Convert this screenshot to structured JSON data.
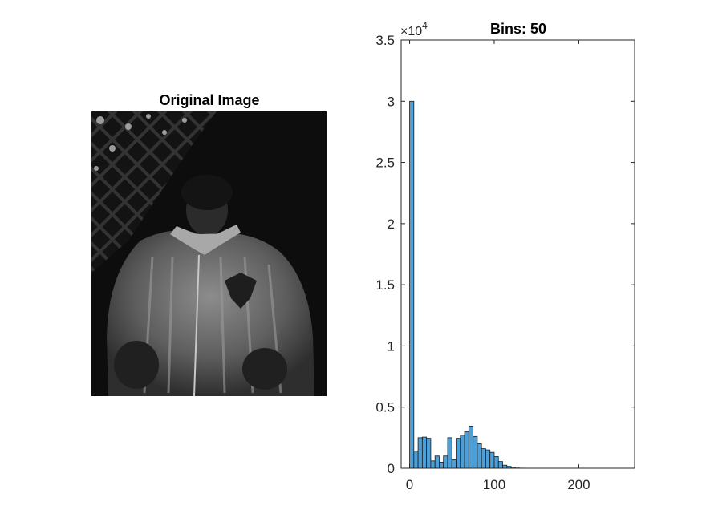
{
  "left_panel": {
    "title": "Original Image"
  },
  "chart_data": {
    "type": "bar",
    "title": "Bins: 50",
    "xlabel": "",
    "ylabel": "",
    "xlim": [
      -10,
      266
    ],
    "ylim": [
      0,
      35000
    ],
    "x_ticks": [
      0,
      100,
      200
    ],
    "x_tick_labels": [
      "0",
      "100",
      "200"
    ],
    "y_ticks": [
      0,
      5000,
      10000,
      15000,
      20000,
      25000,
      30000,
      35000
    ],
    "y_tick_labels": [
      "0",
      "0.5",
      "1",
      "1.5",
      "2",
      "2.5",
      "3",
      "3.5"
    ],
    "y_exponent_label": "×10",
    "y_exponent_power": "4",
    "bin_width": 5,
    "bin_edges_start": 0,
    "values": [
      30000,
      1400,
      2500,
      2550,
      2450,
      600,
      1000,
      500,
      1000,
      2500,
      700,
      2450,
      2700,
      3000,
      3450,
      2600,
      2000,
      1600,
      1500,
      1300,
      950,
      550,
      250,
      150,
      80,
      20,
      10,
      5,
      0,
      0,
      0,
      0,
      0,
      0,
      0,
      0,
      0,
      0,
      0,
      0,
      0,
      0,
      0,
      0,
      0,
      0,
      0,
      0,
      0,
      0
    ],
    "bar_color": "#4d9fd8",
    "bar_edge_color": "#1a1a1a",
    "grid": false,
    "legend": "none"
  }
}
